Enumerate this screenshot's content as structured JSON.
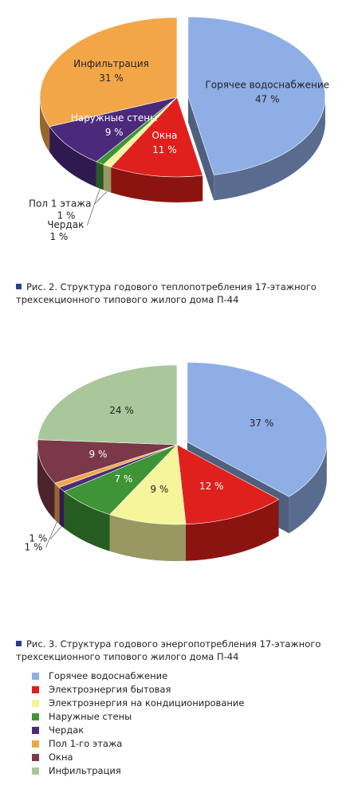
{
  "chart_data": [
    {
      "type": "pie3d",
      "caption": "Рис. 2. Структура годового теплопотребления 17-этажного трехсекционного типового жилого дома П-44",
      "categories": [
        "Горячее водоснабжение",
        "Окна",
        "Пол 1 этажа",
        "Чердак",
        "Наружные стены",
        "Инфильтрация"
      ],
      "values": [
        47,
        11,
        1,
        1,
        9,
        31
      ],
      "value_labels": [
        "47 %",
        "11 %",
        "1 %",
        "1 %",
        "9 %",
        "31 %"
      ],
      "colors": [
        "#8faee6",
        "#e0201c",
        "#f6f59c",
        "#3f9436",
        "#4b2a7c",
        "#f3a648"
      ],
      "explode": [
        true,
        false,
        false,
        false,
        false,
        false
      ],
      "legend": false
    },
    {
      "type": "pie3d",
      "caption": "Рис. 3. Структура годового энергопотребления 17-этажного трехсекционного типового жилого дома П-44",
      "categories": [
        "Горячее водоснабжение",
        "Электроэнергия бытовая",
        "Электроэнергия на кондиционирование",
        "Наружные стены",
        "Чердак",
        "Пол 1-го этажа",
        "Окна",
        "Инфильтрация"
      ],
      "values": [
        37,
        12,
        9,
        7,
        1,
        1,
        9,
        24
      ],
      "value_labels": [
        "37 %",
        "12 %",
        "9 %",
        "7 %",
        "1 %",
        "1 %",
        "9 %",
        "24 %"
      ],
      "colors": [
        "#8faee6",
        "#e0201c",
        "#f6f59c",
        "#3f9436",
        "#4b2a7c",
        "#f3a648",
        "#7a3848",
        "#a9c79b"
      ],
      "explode": [
        true,
        false,
        false,
        false,
        false,
        false,
        false,
        false
      ],
      "legend": true
    }
  ]
}
